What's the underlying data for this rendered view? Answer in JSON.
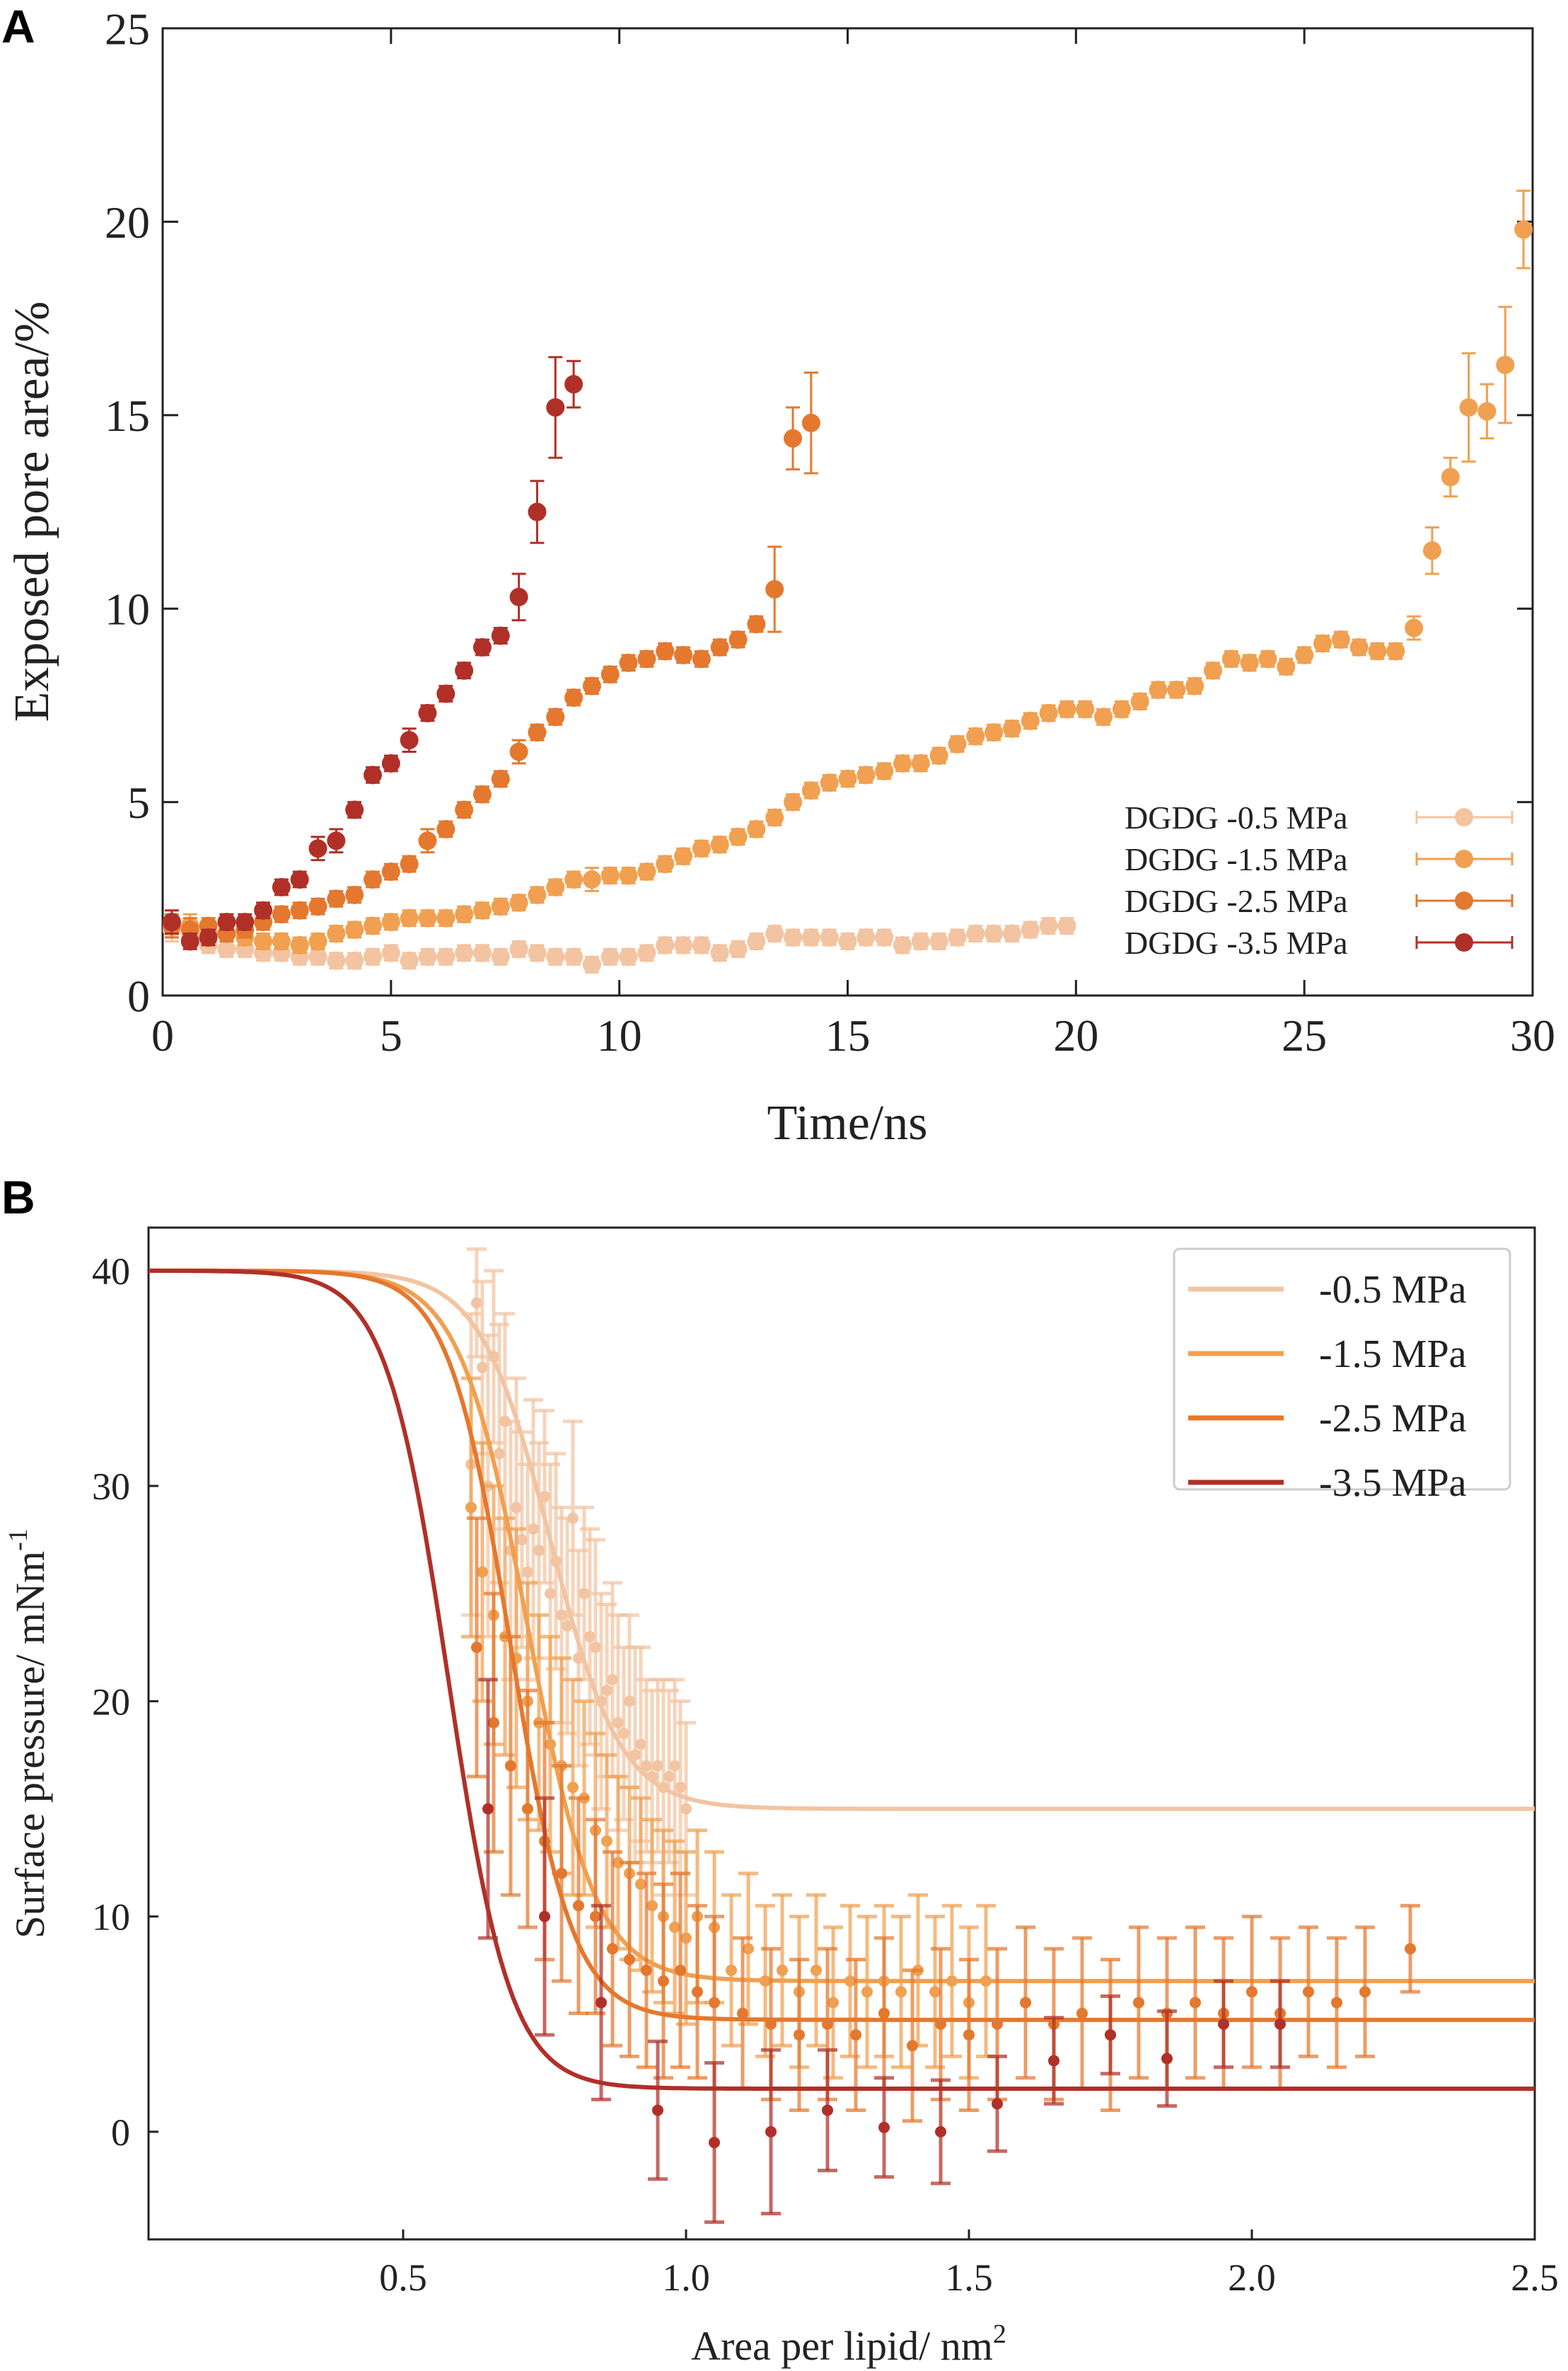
{
  "colors": {
    "s05": "#f2c4a2",
    "s15": "#f0a050",
    "s25": "#e4782e",
    "s35": "#b03028",
    "axis": "#222222"
  },
  "panel_labels": {
    "a": "A",
    "b": "B"
  },
  "chart_data": [
    {
      "type": "scatter",
      "panel": "A",
      "xlabel": "Time/ns",
      "ylabel": "Exposed pore area/%",
      "xlim": [
        0,
        30
      ],
      "ylim": [
        0,
        25
      ],
      "xticks": [
        0,
        5,
        10,
        15,
        20,
        25,
        30
      ],
      "yticks": [
        0,
        5,
        10,
        15,
        20,
        25
      ],
      "xtick_labels": [
        "0",
        "5",
        "10",
        "15",
        "20",
        "25",
        "30"
      ],
      "ytick_labels": [
        "0",
        "5",
        "10",
        "15",
        "20",
        "25"
      ],
      "legend_position": "bottom-right",
      "series": [
        {
          "name": "DGDG -0.5 MPa",
          "color_key": "s05",
          "x": [
            0.2,
            0.6,
            1.0,
            1.4,
            1.8,
            2.2,
            2.6,
            3.0,
            3.4,
            3.8,
            4.2,
            4.6,
            5.0,
            5.4,
            5.8,
            6.2,
            6.6,
            7.0,
            7.4,
            7.8,
            8.2,
            8.6,
            9.0,
            9.4,
            9.8,
            10.2,
            10.6,
            11.0,
            11.4,
            11.8,
            12.2,
            12.6,
            13.0,
            13.4,
            13.8,
            14.2,
            14.6,
            15.0,
            15.4,
            15.8,
            16.2,
            16.6,
            17.0,
            17.4,
            17.8,
            18.2,
            18.6,
            19.0,
            19.4,
            19.8
          ],
          "y": [
            1.7,
            1.5,
            1.3,
            1.2,
            1.2,
            1.1,
            1.1,
            1.0,
            1.0,
            0.9,
            0.9,
            1.0,
            1.1,
            0.9,
            1.0,
            1.0,
            1.1,
            1.1,
            1.0,
            1.2,
            1.1,
            1.0,
            1.0,
            0.8,
            1.0,
            1.0,
            1.1,
            1.3,
            1.3,
            1.3,
            1.1,
            1.2,
            1.4,
            1.6,
            1.5,
            1.5,
            1.5,
            1.4,
            1.5,
            1.5,
            1.3,
            1.4,
            1.4,
            1.5,
            1.6,
            1.6,
            1.6,
            1.7,
            1.8,
            1.8
          ],
          "err": [
            0.3,
            0.3,
            0.2,
            0.2,
            0.2,
            0.2,
            0.2,
            0.2,
            0.2,
            0.2,
            0.2,
            0.2,
            0.2,
            0.2,
            0.2,
            0.2,
            0.2,
            0.2,
            0.2,
            0.2,
            0.2,
            0.2,
            0.2,
            0.2,
            0.2,
            0.2,
            0.2,
            0.2,
            0.2,
            0.2,
            0.2,
            0.2,
            0.2,
            0.2,
            0.2,
            0.2,
            0.2,
            0.2,
            0.2,
            0.2,
            0.2,
            0.2,
            0.2,
            0.2,
            0.2,
            0.2,
            0.2,
            0.2,
            0.2,
            0.2
          ]
        },
        {
          "name": "DGDG -1.5 MPa",
          "color_key": "s15",
          "x": [
            0.2,
            0.6,
            1.0,
            1.4,
            1.8,
            2.2,
            2.6,
            3.0,
            3.4,
            3.8,
            4.2,
            4.6,
            5.0,
            5.4,
            5.8,
            6.2,
            6.6,
            7.0,
            7.4,
            7.8,
            8.2,
            8.6,
            9.0,
            9.4,
            9.8,
            10.2,
            10.6,
            11.0,
            11.4,
            11.8,
            12.2,
            12.6,
            13.0,
            13.4,
            13.8,
            14.2,
            14.6,
            15.0,
            15.4,
            15.8,
            16.2,
            16.6,
            17.0,
            17.4,
            17.8,
            18.2,
            18.6,
            19.0,
            19.4,
            19.8,
            20.2,
            20.6,
            21.0,
            21.4,
            21.8,
            22.2,
            22.6,
            23.0,
            23.4,
            23.8,
            24.2,
            24.6,
            25.0,
            25.4,
            25.8,
            26.2,
            26.6,
            27.0,
            27.4,
            27.8,
            28.2,
            28.6,
            29.0,
            29.4,
            29.8
          ],
          "y": [
            1.9,
            1.8,
            1.6,
            1.6,
            1.5,
            1.4,
            1.4,
            1.3,
            1.4,
            1.6,
            1.7,
            1.8,
            1.9,
            2.0,
            2.0,
            2.0,
            2.1,
            2.2,
            2.3,
            2.4,
            2.6,
            2.8,
            3.0,
            3.0,
            3.1,
            3.1,
            3.2,
            3.4,
            3.6,
            3.8,
            3.9,
            4.1,
            4.3,
            4.6,
            5.0,
            5.3,
            5.5,
            5.6,
            5.7,
            5.8,
            6.0,
            6.0,
            6.2,
            6.5,
            6.7,
            6.8,
            6.9,
            7.1,
            7.3,
            7.4,
            7.4,
            7.2,
            7.4,
            7.6,
            7.9,
            7.9,
            8.0,
            8.4,
            8.7,
            8.6,
            8.7,
            8.5,
            8.8,
            9.1,
            9.2,
            9.0,
            8.9,
            8.9,
            9.5,
            11.5,
            13.4,
            15.2,
            15.1,
            16.3,
            19.8
          ],
          "err": [
            0.3,
            0.3,
            0.2,
            0.2,
            0.2,
            0.2,
            0.2,
            0.2,
            0.2,
            0.2,
            0.2,
            0.2,
            0.2,
            0.2,
            0.2,
            0.2,
            0.2,
            0.2,
            0.2,
            0.2,
            0.2,
            0.2,
            0.2,
            0.3,
            0.2,
            0.2,
            0.2,
            0.2,
            0.2,
            0.2,
            0.2,
            0.2,
            0.2,
            0.2,
            0.2,
            0.2,
            0.2,
            0.2,
            0.2,
            0.2,
            0.2,
            0.2,
            0.2,
            0.2,
            0.2,
            0.2,
            0.2,
            0.2,
            0.2,
            0.2,
            0.2,
            0.2,
            0.2,
            0.2,
            0.2,
            0.2,
            0.2,
            0.2,
            0.2,
            0.2,
            0.2,
            0.2,
            0.2,
            0.2,
            0.2,
            0.2,
            0.2,
            0.2,
            0.3,
            0.6,
            0.5,
            1.4,
            0.7,
            1.5,
            1.0
          ]
        },
        {
          "name": "DGDG -2.5 MPa",
          "color_key": "s25",
          "x": [
            0.2,
            0.6,
            1.0,
            1.4,
            1.8,
            2.2,
            2.6,
            3.0,
            3.4,
            3.8,
            4.2,
            4.6,
            5.0,
            5.4,
            5.8,
            6.2,
            6.6,
            7.0,
            7.4,
            7.8,
            8.2,
            8.6,
            9.0,
            9.4,
            9.8,
            10.2,
            10.6,
            11.0,
            11.4,
            11.8,
            12.2,
            12.6,
            13.0,
            13.4,
            13.8,
            14.2
          ],
          "y": [
            1.8,
            1.7,
            1.8,
            1.6,
            1.7,
            1.9,
            2.1,
            2.2,
            2.3,
            2.5,
            2.6,
            3.0,
            3.2,
            3.4,
            4.0,
            4.3,
            4.8,
            5.2,
            5.6,
            6.3,
            6.8,
            7.2,
            7.7,
            8.0,
            8.3,
            8.6,
            8.7,
            8.9,
            8.8,
            8.7,
            9.0,
            9.2,
            9.6,
            10.5,
            14.4,
            14.8
          ],
          "err": [
            0.3,
            0.3,
            0.2,
            0.2,
            0.2,
            0.2,
            0.2,
            0.2,
            0.2,
            0.2,
            0.2,
            0.2,
            0.2,
            0.2,
            0.3,
            0.2,
            0.2,
            0.2,
            0.2,
            0.3,
            0.2,
            0.2,
            0.2,
            0.2,
            0.2,
            0.2,
            0.2,
            0.2,
            0.2,
            0.2,
            0.2,
            0.2,
            0.2,
            1.1,
            0.8,
            1.3
          ]
        },
        {
          "name": "DGDG -3.5 MPa",
          "color_key": "s35",
          "x": [
            0.2,
            0.6,
            1.0,
            1.4,
            1.8,
            2.2,
            2.6,
            3.0,
            3.4,
            3.8,
            4.2,
            4.6,
            5.0,
            5.4,
            5.8,
            6.2,
            6.6,
            7.0,
            7.4,
            7.8,
            8.2,
            8.6,
            9.0
          ],
          "y": [
            1.9,
            1.4,
            1.5,
            1.9,
            1.9,
            2.2,
            2.8,
            3.0,
            3.8,
            4.0,
            4.8,
            5.7,
            6.0,
            6.6,
            7.3,
            7.8,
            8.4,
            9.0,
            9.3,
            10.3,
            12.5,
            15.2,
            15.8
          ],
          "err": [
            0.3,
            0.2,
            0.2,
            0.2,
            0.2,
            0.2,
            0.2,
            0.2,
            0.3,
            0.3,
            0.2,
            0.2,
            0.2,
            0.3,
            0.2,
            0.2,
            0.2,
            0.2,
            0.2,
            0.6,
            0.8,
            1.3,
            0.6
          ]
        }
      ]
    },
    {
      "type": "scatter",
      "panel": "B",
      "xlabel": "Area per lipid/ nm",
      "xlabel_sup": "2",
      "ylabel": "Surface pressure/ mNm",
      "ylabel_sup": "-1",
      "xlim": [
        0.05,
        2.5
      ],
      "ylim": [
        -5,
        42
      ],
      "xticks": [
        0.5,
        1.0,
        1.5,
        2.0,
        2.5
      ],
      "yticks": [
        0,
        10,
        20,
        30,
        40
      ],
      "xtick_labels": [
        "0.5",
        "1.0",
        "1.5",
        "2.0",
        "2.5"
      ],
      "ytick_labels": [
        "0",
        "10",
        "20",
        "30",
        "40"
      ],
      "legend_position": "top-right",
      "fit_model": "sigmoid: y = low + (40 - low) / (1 + exp((x - x0) / k))",
      "series": [
        {
          "name": "-0.5 MPa",
          "color_key": "s05",
          "fit": {
            "low": 15.0,
            "x0": 0.76,
            "k": 0.062
          },
          "x": [
            0.62,
            0.63,
            0.64,
            0.65,
            0.66,
            0.67,
            0.68,
            0.69,
            0.7,
            0.71,
            0.72,
            0.73,
            0.74,
            0.75,
            0.76,
            0.77,
            0.78,
            0.79,
            0.8,
            0.81,
            0.82,
            0.83,
            0.84,
            0.85,
            0.86,
            0.87,
            0.88,
            0.89,
            0.9,
            0.91,
            0.92,
            0.93,
            0.94,
            0.95,
            0.96,
            0.97,
            0.98,
            0.99,
            1.0
          ],
          "y": [
            31.0,
            38.5,
            35.5,
            30.0,
            36.0,
            31.5,
            33.0,
            27.0,
            29.0,
            27.5,
            26.0,
            28.0,
            27.0,
            29.5,
            25.0,
            26.5,
            24.0,
            23.5,
            28.5,
            22.0,
            25.0,
            23.0,
            22.5,
            20.0,
            20.5,
            21.0,
            19.0,
            18.5,
            20.0,
            17.5,
            18.0,
            17.0,
            16.5,
            17.0,
            16.0,
            16.5,
            17.0,
            16.0,
            15.0
          ],
          "err": [
            7,
            2.5,
            4,
            7,
            4,
            6,
            5,
            6,
            6,
            5,
            5,
            6,
            5,
            4,
            6,
            5,
            5,
            5,
            4.5,
            5,
            4,
            5,
            5,
            5,
            4,
            4.5,
            5,
            4,
            4,
            5,
            4.5,
            4,
            4,
            4,
            5,
            4,
            4,
            4,
            4
          ]
        },
        {
          "name": "-1.5 MPa",
          "color_key": "s15",
          "fit": {
            "low": 7.0,
            "x0": 0.72,
            "k": 0.06
          },
          "x": [
            0.62,
            0.64,
            0.66,
            0.68,
            0.7,
            0.72,
            0.74,
            0.76,
            0.78,
            0.8,
            0.82,
            0.84,
            0.86,
            0.88,
            0.9,
            0.92,
            0.94,
            0.96,
            0.98,
            1.0,
            1.02,
            1.05,
            1.08,
            1.11,
            1.14,
            1.17,
            1.2,
            1.23,
            1.26,
            1.29,
            1.32,
            1.35,
            1.38,
            1.41,
            1.44,
            1.47,
            1.5,
            1.53
          ],
          "y": [
            29.0,
            26.0,
            24.0,
            23.0,
            22.0,
            20.0,
            19.0,
            18.0,
            17.0,
            16.0,
            15.5,
            14.0,
            13.5,
            12.5,
            12.0,
            11.5,
            10.5,
            10.0,
            9.5,
            9.0,
            10.0,
            9.5,
            7.5,
            8.5,
            7.0,
            7.5,
            6.5,
            7.5,
            6.0,
            7.0,
            6.5,
            7.0,
            6.5,
            7.5,
            6.5,
            7.0,
            6.0,
            7.0
          ],
          "err": [
            6,
            6,
            6,
            5.5,
            6,
            5.5,
            5,
            5,
            5,
            5,
            4.5,
            4.5,
            4,
            4,
            4,
            4,
            4,
            4,
            4,
            4,
            4,
            3.5,
            3.5,
            3.5,
            3.5,
            3.5,
            3.5,
            3.5,
            3.5,
            3.5,
            3.5,
            3.5,
            3.5,
            3.5,
            3.5,
            3.5,
            3.5,
            3.5
          ]
        },
        {
          "name": "-2.5 MPa",
          "color_key": "s25",
          "fit": {
            "low": 5.2,
            "x0": 0.69,
            "k": 0.055
          },
          "x": [
            0.63,
            0.66,
            0.69,
            0.72,
            0.75,
            0.78,
            0.81,
            0.84,
            0.87,
            0.9,
            0.93,
            0.96,
            0.99,
            1.02,
            1.05,
            1.1,
            1.15,
            1.2,
            1.25,
            1.3,
            1.35,
            1.4,
            1.45,
            1.5,
            1.55,
            1.6,
            1.65,
            1.7,
            1.75,
            1.8,
            1.85,
            1.9,
            1.95,
            2.0,
            2.05,
            2.1,
            2.15,
            2.2,
            2.28
          ],
          "y": [
            22.5,
            19.0,
            17.0,
            15.0,
            13.5,
            12.0,
            10.5,
            10.0,
            8.5,
            8.0,
            7.5,
            7.0,
            7.5,
            6.5,
            6.0,
            5.5,
            5.0,
            4.5,
            5.0,
            4.5,
            5.5,
            4.0,
            5.0,
            4.5,
            5.0,
            6.0,
            5.0,
            5.5,
            4.5,
            6.0,
            5.5,
            6.0,
            5.5,
            6.5,
            5.5,
            6.5,
            6.0,
            6.5,
            8.5
          ],
          "err": [
            6,
            6,
            6,
            5.5,
            5.5,
            5,
            5,
            4.5,
            4.5,
            4.5,
            4.5,
            4.5,
            4.5,
            4,
            4,
            3.5,
            3.5,
            3.5,
            3.5,
            3.5,
            3.5,
            3.5,
            3.5,
            3.5,
            3.5,
            3.5,
            3.5,
            3.5,
            3.5,
            3.5,
            3.5,
            3.5,
            3.5,
            3.5,
            3.5,
            3,
            3,
            3,
            2
          ]
        },
        {
          "name": "-3.5 MPa",
          "color_key": "s35",
          "fit": {
            "low": 2.0,
            "x0": 0.58,
            "k": 0.055
          },
          "x": [
            0.65,
            0.75,
            0.85,
            0.95,
            1.05,
            1.15,
            1.25,
            1.35,
            1.45,
            1.55,
            1.65,
            1.75,
            1.85,
            1.95,
            2.05
          ],
          "y": [
            15.0,
            10.0,
            6.0,
            1.0,
            -0.5,
            0.0,
            1.0,
            0.2,
            0.0,
            1.3,
            3.3,
            4.5,
            3.4,
            5.0,
            5.0
          ],
          "err": [
            6,
            5.5,
            4.5,
            3.2,
            3.7,
            3.8,
            2.8,
            2.3,
            2.4,
            2.2,
            2.0,
            1.8,
            2.2,
            2.0,
            2.0
          ]
        }
      ]
    }
  ]
}
